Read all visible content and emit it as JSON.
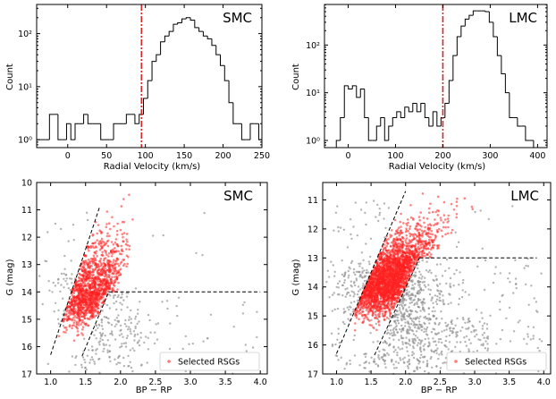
{
  "figure": {
    "description_free": true
  },
  "colors": {
    "selected": "#ff2020",
    "other": "#8c8c8c",
    "cut": "#d62728",
    "line": "#000000"
  },
  "chart_data": [
    {
      "id": "hist-smc",
      "type": "histogram",
      "title": "SMC",
      "xlabel": "Radial Velocity (km/s)",
      "ylabel": "Count",
      "xlim": [
        -40,
        250
      ],
      "ylim_log10": [
        -0.15,
        2.55
      ],
      "yscale": "log",
      "xticks": [
        0,
        50,
        100,
        150,
        200,
        250
      ],
      "yticks": [
        {
          "value": 1,
          "label": "10⁰"
        },
        {
          "value": 10,
          "label": "10¹"
        },
        {
          "value": 100,
          "label": "10²"
        }
      ],
      "bin_edges_start": -40,
      "bin_width": 5.5,
      "counts": [
        1,
        1,
        1,
        3,
        3,
        1,
        1,
        2,
        1,
        2,
        2,
        3,
        2,
        2,
        2,
        1,
        1,
        1,
        2,
        2,
        2,
        3,
        3,
        2,
        3,
        6,
        13,
        30,
        40,
        70,
        90,
        110,
        150,
        160,
        190,
        200,
        180,
        130,
        110,
        90,
        80,
        60,
        40,
        25,
        13,
        5,
        2,
        2,
        1,
        1,
        2,
        2,
        1
      ],
      "cut_line": 95
    },
    {
      "id": "hist-lmc",
      "type": "histogram",
      "title": "LMC",
      "xlabel": "Radial Velocity (km/s)",
      "ylabel": "Count",
      "xlim": [
        -50,
        420
      ],
      "ylim_log10": [
        -0.15,
        2.85
      ],
      "yscale": "log",
      "xticks": [
        0,
        100,
        200,
        300,
        400
      ],
      "yticks": [
        {
          "value": 1,
          "label": "10⁰"
        },
        {
          "value": 10,
          "label": "10¹"
        },
        {
          "value": 100,
          "label": "10²"
        }
      ],
      "bin_edges_start": -25,
      "bin_width": 8.5,
      "counts": [
        1,
        3,
        14,
        12,
        14,
        8,
        12,
        3,
        1,
        1,
        2,
        3,
        1,
        2,
        3,
        4,
        3,
        5,
        4,
        6,
        4,
        6,
        3,
        2,
        4,
        2,
        3,
        6,
        18,
        60,
        150,
        250,
        350,
        420,
        520,
        520,
        520,
        500,
        300,
        150,
        60,
        25,
        10,
        3,
        3,
        2,
        2,
        1,
        1
      ],
      "cut_line": 200
    },
    {
      "id": "cmd-smc",
      "type": "scatter",
      "title": "SMC",
      "xlabel": "BP − RP",
      "ylabel": "G (mag)",
      "xlim": [
        0.8,
        4.1
      ],
      "ylim": [
        17,
        10
      ],
      "xticks": [
        1.0,
        1.5,
        2.0,
        2.5,
        3.0,
        3.5,
        4.0
      ],
      "yticks": [
        10,
        11,
        12,
        13,
        14,
        15,
        16,
        17
      ],
      "legend": "Selected RSGs",
      "selection_lines": [
        {
          "from": [
            1.0,
            16.3
          ],
          "to": [
            1.7,
            10.9
          ]
        },
        {
          "from": [
            1.45,
            16.35
          ],
          "to": [
            1.83,
            14.0
          ]
        },
        {
          "from": [
            1.83,
            14.0
          ],
          "to": [
            4.0,
            14.0
          ]
        }
      ]
    },
    {
      "id": "cmd-lmc",
      "type": "scatter",
      "title": "LMC",
      "xlabel": "BP − RP",
      "ylabel": "G (mag)",
      "xlim": [
        0.8,
        4.1
      ],
      "ylim": [
        17,
        10.4
      ],
      "xticks": [
        1.0,
        1.5,
        2.0,
        2.5,
        3.0,
        3.5,
        4.0
      ],
      "yticks": [
        11,
        12,
        13,
        14,
        15,
        16,
        17
      ],
      "legend": "Selected RSGs",
      "selection_lines": [
        {
          "from": [
            1.0,
            16.3
          ],
          "to": [
            2.0,
            10.7
          ]
        },
        {
          "from": [
            1.55,
            16.35
          ],
          "to": [
            2.2,
            13.0
          ]
        },
        {
          "from": [
            2.2,
            13.0
          ],
          "to": [
            3.9,
            13.0
          ]
        }
      ]
    }
  ]
}
